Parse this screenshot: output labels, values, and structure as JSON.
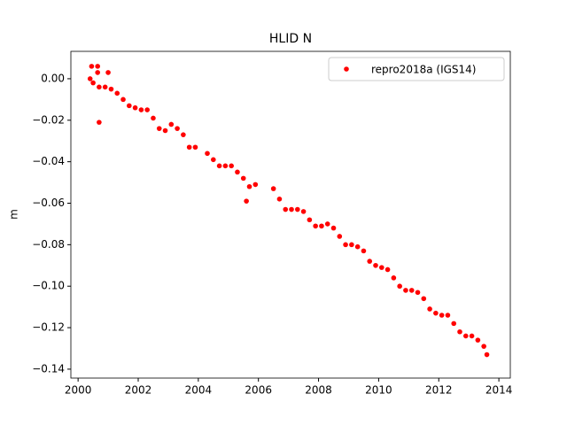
{
  "chart_data": {
    "type": "scatter",
    "title": "HLID N",
    "ylabel": "m",
    "legend_position": "upper right",
    "grid": false,
    "series": [
      {
        "name": "repro2018a (IGS14)",
        "color": "#ff0000",
        "x": [
          2000.4,
          2000.45,
          2000.5,
          2000.65,
          2000.65,
          2000.7,
          2000.7,
          2000.9,
          2001.0,
          2001.1,
          2001.3,
          2001.5,
          2001.7,
          2001.9,
          2002.1,
          2002.3,
          2002.5,
          2002.7,
          2002.9,
          2003.1,
          2003.3,
          2003.5,
          2003.7,
          2003.9,
          2004.3,
          2004.5,
          2004.7,
          2004.9,
          2005.1,
          2005.3,
          2005.5,
          2005.6,
          2005.7,
          2005.9,
          2006.5,
          2006.7,
          2006.9,
          2007.1,
          2007.3,
          2007.5,
          2007.7,
          2007.9,
          2008.1,
          2008.3,
          2008.5,
          2008.7,
          2008.9,
          2009.1,
          2009.3,
          2009.5,
          2009.7,
          2009.9,
          2010.1,
          2010.3,
          2010.5,
          2010.7,
          2010.9,
          2011.1,
          2011.3,
          2011.5,
          2011.7,
          2011.9,
          2012.1,
          2012.3,
          2012.5,
          2012.7,
          2012.9,
          2013.1,
          2013.3,
          2013.5,
          2013.6
        ],
        "values": [
          0.0,
          0.006,
          -0.002,
          0.006,
          0.003,
          -0.004,
          -0.021,
          -0.004,
          0.003,
          -0.005,
          -0.007,
          -0.01,
          -0.013,
          -0.014,
          -0.015,
          -0.015,
          -0.019,
          -0.024,
          -0.025,
          -0.022,
          -0.024,
          -0.027,
          -0.033,
          -0.033,
          -0.036,
          -0.039,
          -0.042,
          -0.042,
          -0.042,
          -0.045,
          -0.048,
          -0.059,
          -0.052,
          -0.051,
          -0.053,
          -0.058,
          -0.063,
          -0.063,
          -0.063,
          -0.064,
          -0.068,
          -0.071,
          -0.071,
          -0.07,
          -0.072,
          -0.076,
          -0.08,
          -0.08,
          -0.081,
          -0.083,
          -0.088,
          -0.09,
          -0.091,
          -0.092,
          -0.096,
          -0.1,
          -0.102,
          -0.102,
          -0.103,
          -0.106,
          -0.111,
          -0.113,
          -0.114,
          -0.114,
          -0.118,
          -0.122,
          -0.124,
          -0.124,
          -0.126,
          -0.129,
          -0.133
        ]
      }
    ],
    "xlim": [
      1999.76,
      2014.38
    ],
    "xticks": [
      2000,
      2002,
      2004,
      2006,
      2008,
      2010,
      2012,
      2014
    ],
    "ylim": [
      -0.1443,
      0.0132
    ],
    "yticks": [
      {
        "value": -0.14,
        "label": "−0.14"
      },
      {
        "value": -0.12,
        "label": "−0.12"
      },
      {
        "value": -0.1,
        "label": "−0.10"
      },
      {
        "value": -0.08,
        "label": "−0.08"
      },
      {
        "value": -0.06,
        "label": "−0.06"
      },
      {
        "value": -0.04,
        "label": "−0.04"
      },
      {
        "value": -0.02,
        "label": "−0.02"
      },
      {
        "value": 0,
        "label": "0.00"
      }
    ]
  }
}
